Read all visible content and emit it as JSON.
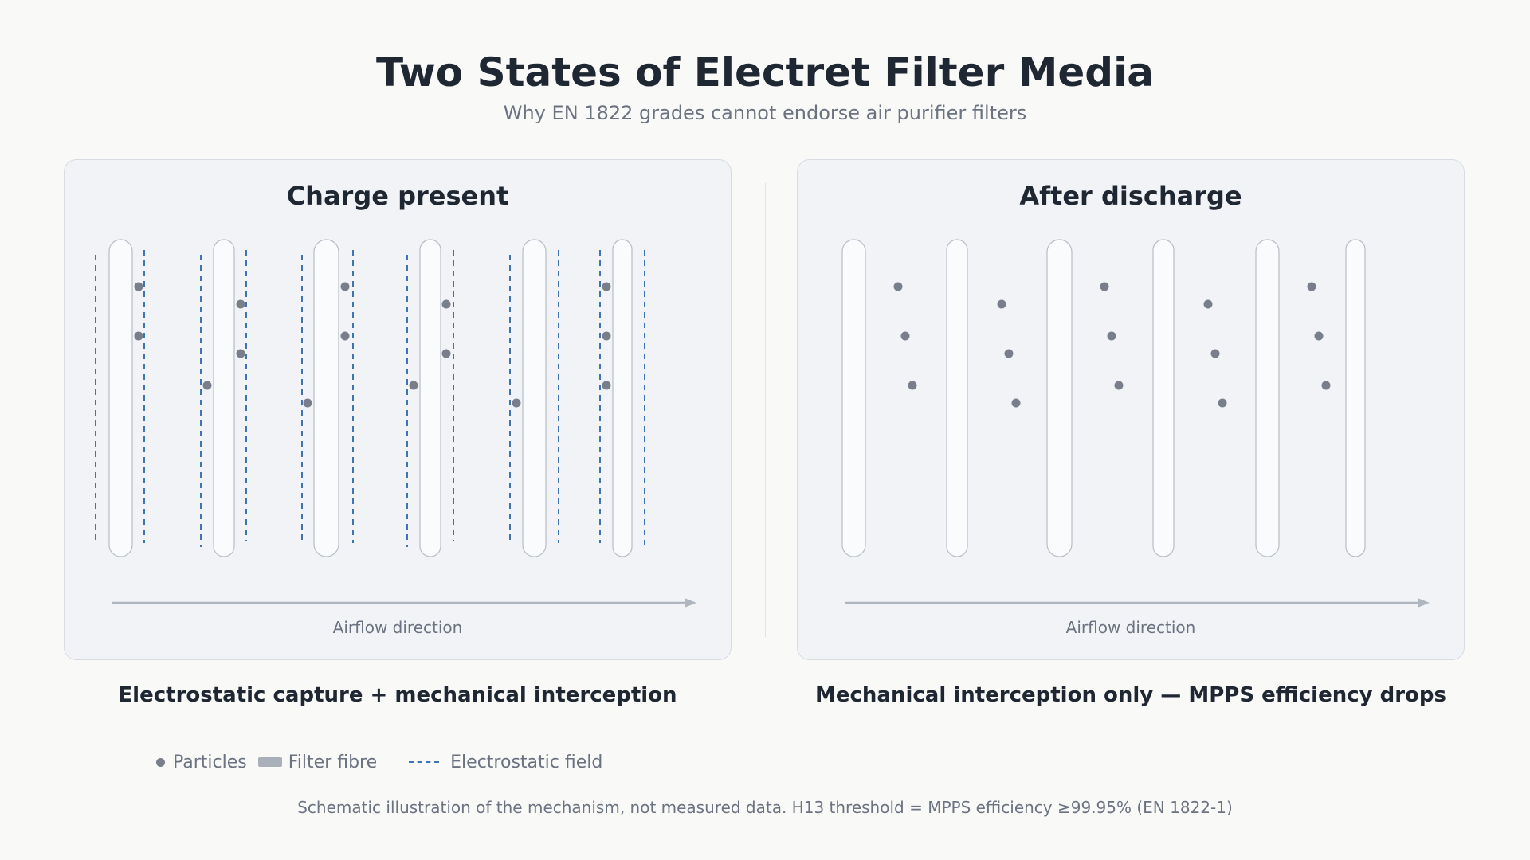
{
  "title": "Two States of Electret Filter Media",
  "subtitle": "Why EN 1822 grades cannot endorse air purifier filters",
  "panels": [
    {
      "title": "Charge present",
      "airflow_label": "Airflow direction",
      "caption": "Electrostatic capture + mechanical interception",
      "electrostatic_field": true
    },
    {
      "title": "After discharge",
      "airflow_label": "Airflow direction",
      "caption": "Mechanical interception only — MPPS efficiency drops",
      "electrostatic_field": false
    }
  ],
  "legend": {
    "particles": "Particles",
    "fibre": "Filter fibre",
    "field": "Electrostatic field"
  },
  "footnote": "Schematic illustration of the mechanism, not measured data. H13 threshold = MPPS efficiency ≥99.95% (EN 1822-1)",
  "colors": {
    "particle": "#787f8a",
    "field": "#3e74b4",
    "fibre_fill": "#fafbfc",
    "fibre_stroke": "#b7bdc6",
    "arrow": "#b0b6bf"
  }
}
